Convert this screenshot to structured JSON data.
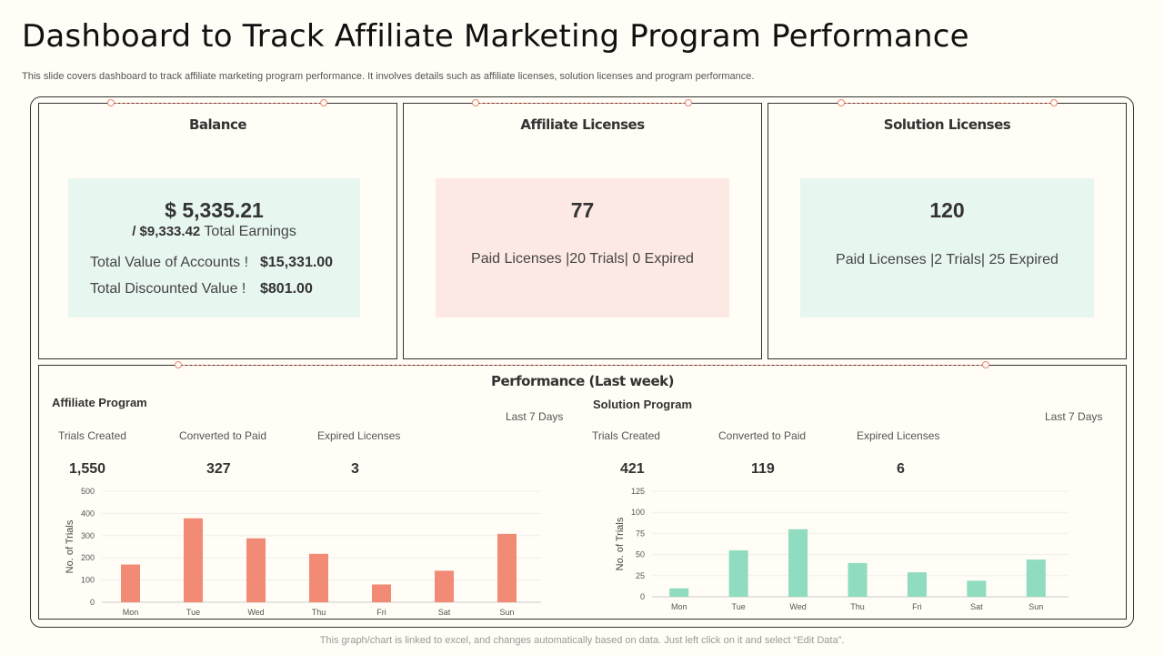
{
  "page": {
    "title": "Dashboard to Track Affiliate Marketing Program Performance",
    "subtitle": "This slide covers dashboard to track affiliate marketing program performance. It involves details such as affiliate licenses, solution licenses and program performance.",
    "footer": "This graph/chart is linked to excel,  and changes automatically based on data. Just left click on it and select “Edit Data”."
  },
  "balance": {
    "title": "Balance",
    "amount": "$ 5,335.21",
    "earnings_value": "/ $9,333.42",
    "earnings_label": " Total  Earnings",
    "rows": [
      {
        "label": "Total Value of Accounts  !",
        "value": "$15,331.00"
      },
      {
        "label": "Total Discounted Value  !",
        "value": "$801.00"
      }
    ],
    "color": "#e8f6f0"
  },
  "affiliate_licenses": {
    "title": "Affiliate Licenses",
    "count": "77",
    "detail": "Paid Licenses |20 Trials|  0 Expired",
    "color": "#fde9e3"
  },
  "solution_licenses": {
    "title": "Solution Licenses",
    "count": "120",
    "detail": "Paid Licenses |2 Trials|  25 Expired",
    "color": "#e8f6f0"
  },
  "performance": {
    "title": "Performance (Last week)",
    "affiliate": {
      "title": "Affiliate Program",
      "period": "Last 7 Days",
      "stats": [
        {
          "label": "Trials Created",
          "value": "1,550"
        },
        {
          "label": "Converted to Paid",
          "value": "327"
        },
        {
          "label": "Expired Licenses",
          "value": "3"
        }
      ]
    },
    "solution": {
      "title": "Solution Program",
      "period": "Last 7 Days",
      "stats": [
        {
          "label": "Trials Created",
          "value": "421"
        },
        {
          "label": "Converted to Paid",
          "value": "119"
        },
        {
          "label": "Expired Licenses",
          "value": "6"
        }
      ]
    }
  },
  "chart_data": [
    {
      "type": "bar",
      "categories": [
        "Mon",
        "Tue",
        "Wed",
        "Thu",
        "Fri",
        "Sat",
        "Sun"
      ],
      "values": [
        170,
        378,
        288,
        218,
        80,
        142,
        308
      ],
      "ylabel": "No. of Trials",
      "ylim": [
        0,
        500
      ],
      "yticks": [
        0,
        100,
        200,
        300,
        400,
        500
      ],
      "grid": true,
      "color": "#f28b76"
    },
    {
      "type": "bar",
      "categories": [
        "Mon",
        "Tue",
        "Wed",
        "Thu",
        "Fri",
        "Sat",
        "Sun"
      ],
      "values": [
        10,
        55,
        80,
        40,
        29,
        19,
        44
      ],
      "ylabel": "No. of Trials",
      "ylim": [
        0,
        125
      ],
      "yticks": [
        0,
        25,
        50,
        75,
        100,
        125
      ],
      "grid": true,
      "color": "#8fdcc0"
    }
  ]
}
